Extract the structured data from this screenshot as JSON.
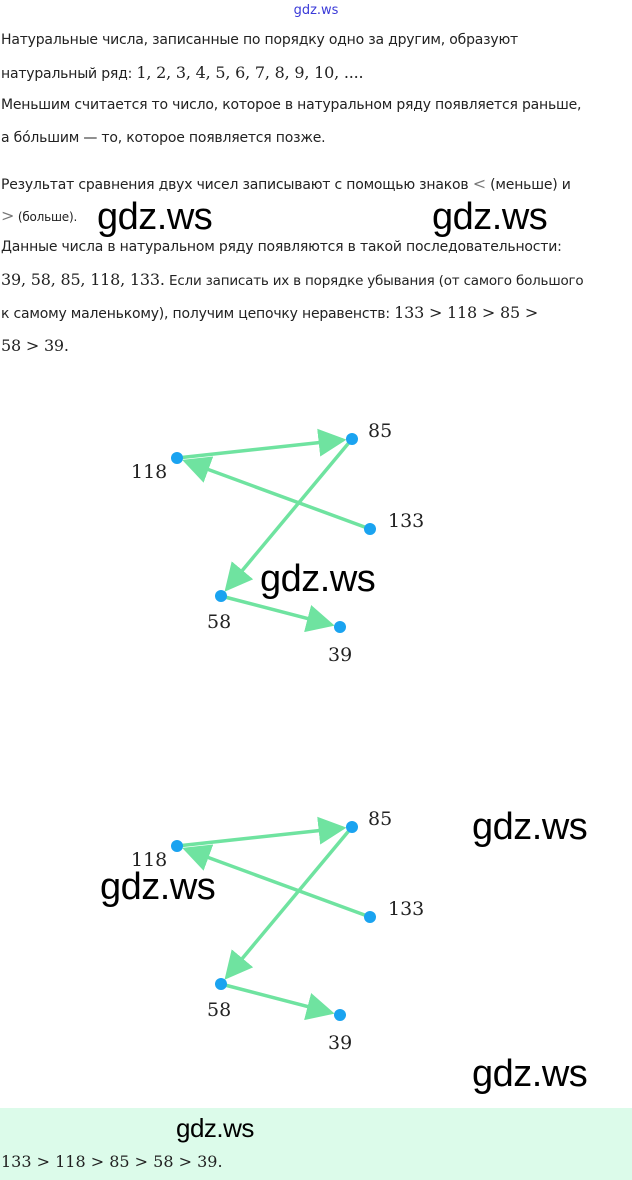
{
  "watermark": "gdz.ws",
  "text": {
    "l1": "Натуральные числа, записанные по порядку одно за другим, образуют",
    "l2_prefix": "натуральный ряд:",
    "l2_math": "1,  2,  3,  4,  5,  6,  7,  8,  9,  10,  ....",
    "l3": "Меньшим считается то число, которое в натуральном ряду появляется раньше,",
    "l4": "а бо́льшим — то, которое появляется позже.",
    "l5_prefix": "Результат сравнения двух чисел записывают с помощью знаков",
    "l5_sign": "<",
    "l5_suffix": "(меньше) и",
    "l6_sign": ">",
    "l6_suffix": "(больше).",
    "l7": "Данные числа в натуральном ряду появляются в такой последовательности:",
    "l8_math": "39, 58, 85, 118, 133.",
    "l8_suffix": "Если записать их в порядке убывания (от самого большого",
    "l9_prefix": "к самому маленькому), получим цепочку неравенств:",
    "l9_math": "133 > 118 > 85 >",
    "l10_math": "58 > 39."
  },
  "diagram": {
    "node_color": "#1aa3f0",
    "edge_color": "#6fe3a0",
    "nodes": [
      "118",
      "85",
      "133",
      "58",
      "39"
    ],
    "edges": [
      [
        "133",
        "118"
      ],
      [
        "118",
        "85"
      ],
      [
        "85",
        "58"
      ],
      [
        "58",
        "39"
      ]
    ]
  },
  "answer": {
    "background": "#dcfbea",
    "text": "133 > 118 > 85 > 58 > 39."
  }
}
